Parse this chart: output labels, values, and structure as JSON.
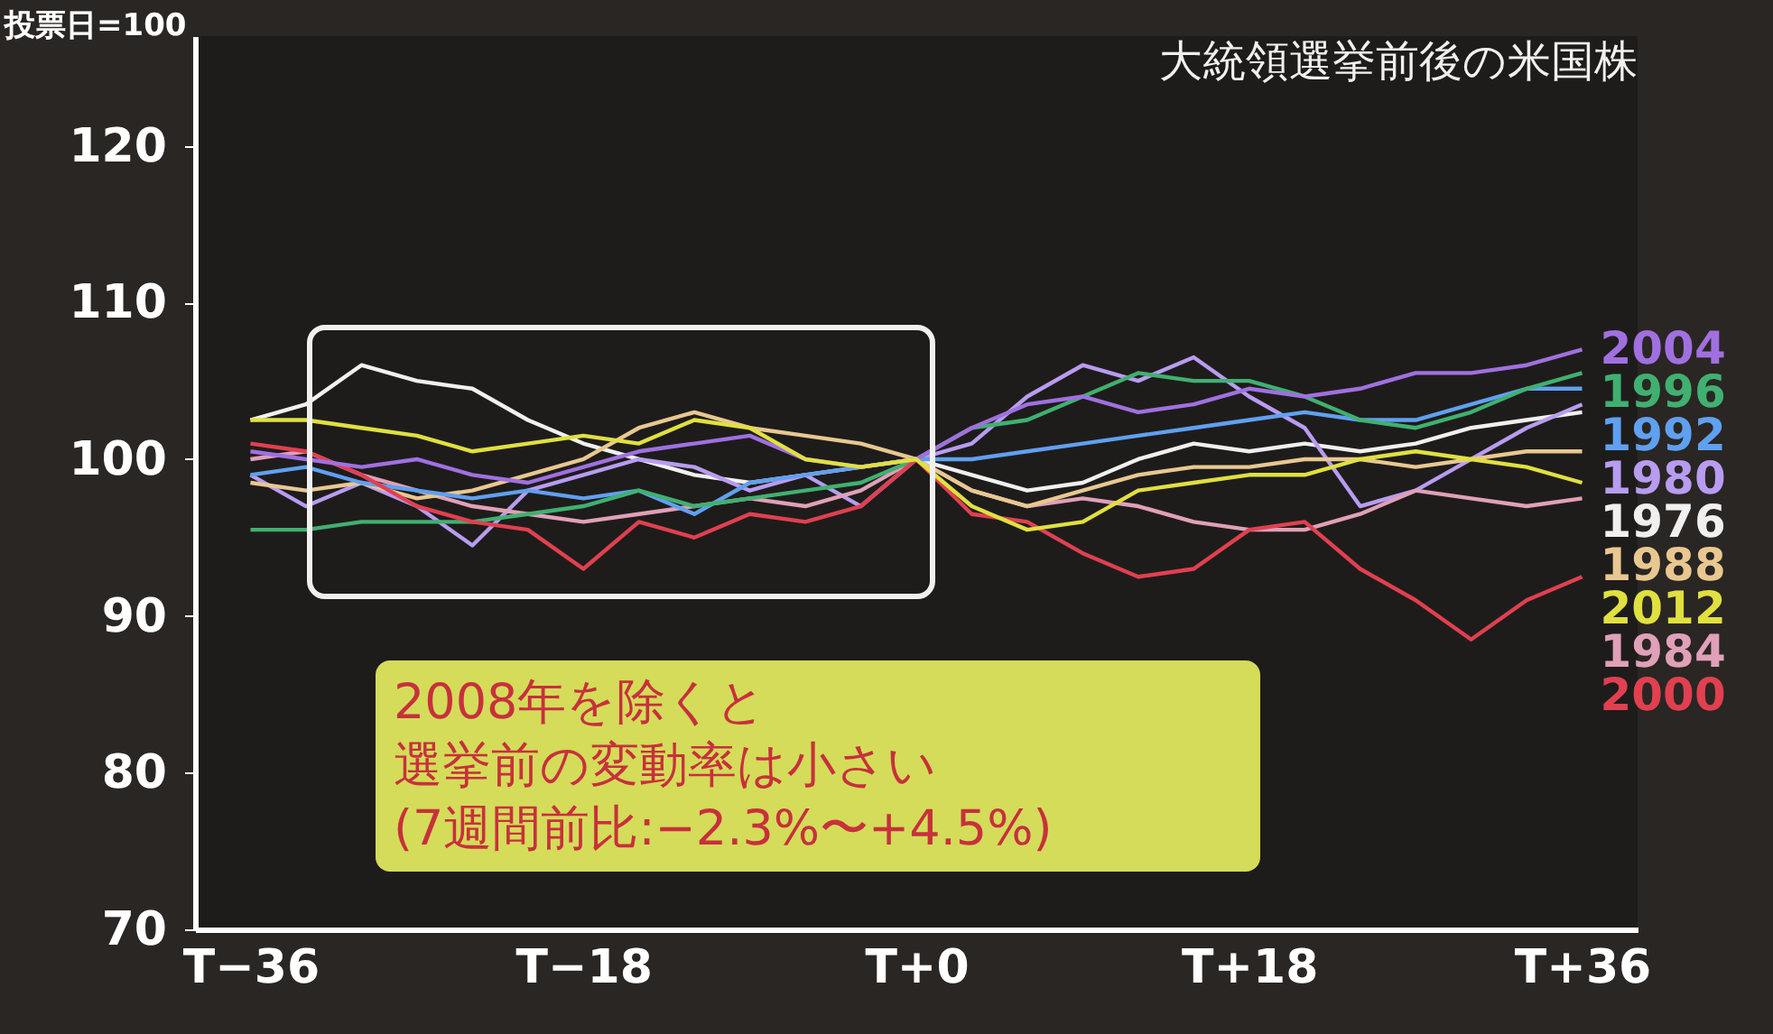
{
  "chart_data": {
    "type": "line",
    "title": "大統領選挙前後の米国株",
    "ylabel": "投票日=100",
    "annotations": [
      "2008年を除くと",
      "選挙前の変動率は小さい",
      "(7週間前比:−2.3%〜+4.5%)"
    ],
    "categories": [
      "T−36",
      null,
      null,
      null,
      null,
      null,
      "T−18",
      null,
      null,
      null,
      null,
      null,
      "T+0",
      null,
      null,
      null,
      null,
      null,
      "T+18",
      null,
      null,
      null,
      null,
      null,
      "T+36"
    ],
    "ylim": [
      70,
      127
    ],
    "yticks": [
      70,
      80,
      90,
      100,
      110,
      120
    ],
    "grid": false,
    "legend": false,
    "marker": "none",
    "line_style": "solid",
    "series": [
      {
        "name": "1976",
        "color": "#f0f0f0",
        "values": [
          102.5,
          103.5,
          106,
          105,
          104.5,
          102.5,
          101,
          100,
          99,
          98.5,
          99,
          99.5,
          100,
          99,
          98,
          98.5,
          100,
          101,
          100.5,
          101,
          100.5,
          101,
          102,
          102.5,
          103
        ]
      },
      {
        "name": "1980",
        "color": "#b89cf0",
        "values": [
          99,
          97,
          98.5,
          97,
          94.5,
          98,
          99,
          100,
          99.5,
          98,
          99,
          97,
          100,
          101,
          104,
          106,
          105,
          106.5,
          104,
          102,
          97,
          98,
          100,
          102,
          103.5
        ]
      },
      {
        "name": "1984",
        "color": "#e0a0b8",
        "values": [
          100,
          100.5,
          99,
          98,
          97,
          96.5,
          96,
          96.5,
          97,
          97.5,
          97,
          98,
          100,
          98,
          97,
          97.5,
          97,
          96,
          95.5,
          95.5,
          96.5,
          98,
          97.5,
          97,
          97.5
        ]
      },
      {
        "name": "1988",
        "color": "#e8c890",
        "values": [
          98.5,
          98,
          98.5,
          97.5,
          98,
          99,
          100,
          102,
          103,
          102,
          101.5,
          101,
          100,
          98,
          97,
          98,
          99,
          99.5,
          99.5,
          100,
          100,
          99.5,
          100,
          100.5,
          100.5
        ]
      },
      {
        "name": "1992",
        "color": "#60a0f0",
        "values": [
          99,
          99.5,
          98.5,
          98,
          97.5,
          98,
          97.5,
          98,
          96.5,
          98.5,
          99,
          99.5,
          100,
          100,
          100.5,
          101,
          101.5,
          102,
          102.5,
          103,
          102.5,
          102.5,
          103.5,
          104.5,
          104.5
        ]
      },
      {
        "name": "1996",
        "color": "#40b070",
        "values": [
          95.5,
          95.5,
          96,
          96,
          96,
          96.5,
          97,
          98,
          97,
          97.5,
          98,
          98.5,
          100,
          102,
          102.5,
          104,
          105.5,
          105,
          105,
          104,
          102.5,
          102,
          103,
          104.5,
          105.5
        ]
      },
      {
        "name": "2000",
        "color": "#e04050",
        "values": [
          101,
          100.5,
          99,
          97,
          96,
          95.5,
          93,
          96,
          95,
          96.5,
          96,
          97,
          100,
          96.5,
          96,
          94,
          92.5,
          93,
          95.5,
          96,
          93,
          91,
          88.5,
          91,
          92.5
        ]
      },
      {
        "name": "2004",
        "color": "#a070e0",
        "values": [
          100.5,
          100,
          99.5,
          100,
          99,
          98.5,
          99.5,
          100.5,
          101,
          101.5,
          100,
          99.5,
          100,
          102,
          103.5,
          104,
          103,
          103.5,
          104.5,
          104,
          104.5,
          105.5,
          105.5,
          106,
          107
        ]
      },
      {
        "name": "2012",
        "color": "#e0e040",
        "values": [
          102.5,
          102.5,
          102,
          101.5,
          100.5,
          101,
          101.5,
          101,
          102.5,
          102,
          100,
          99.5,
          100,
          97,
          95.5,
          96,
          98,
          98.5,
          99,
          99,
          100,
          100.5,
          100,
          99.5,
          98.5
        ]
      }
    ]
  }
}
